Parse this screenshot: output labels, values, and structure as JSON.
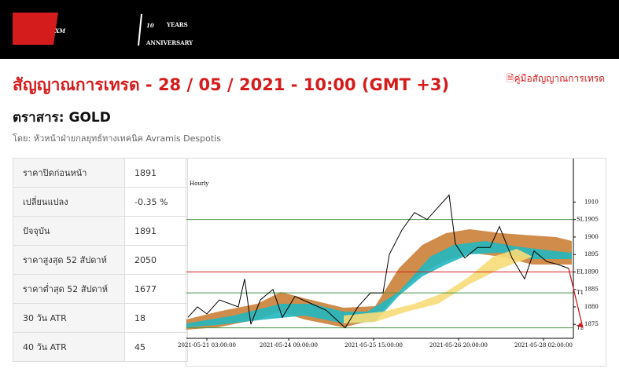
{
  "header": {
    "logo": "XM",
    "years": "10",
    "years_word": "YEARS",
    "anniversary": "ANNIVERSARY"
  },
  "title": "สัญญาณการเทรด - 28 / 05 / 2021 - 10:00 (GMT +3)",
  "guide_link": "คู่มือสัญญาณการเทรด",
  "instrument": "ตราสาร: GOLD",
  "author": "โดย: หัวหน้าฝ่ายกลยุทธ์ทางเทคนิค Avramis Despotis",
  "table": {
    "rows": [
      [
        "ราคาปิดก่อนหน้า",
        "1891"
      ],
      [
        "เปลี่ยนแปลง",
        "-0.35 %"
      ],
      [
        "ปัจจุบัน",
        "1891"
      ],
      [
        "ราคาสูงสุด 52 สัปดาห์",
        "2050"
      ],
      [
        "ราคาต่ำสุด 52 สัปดาห์",
        "1677"
      ],
      [
        "30 วัน ATR",
        "18"
      ],
      [
        "40 วัน ATR",
        "45"
      ]
    ]
  },
  "chart_data": {
    "type": "line",
    "title": "Hourly",
    "x": [
      -6,
      -3,
      0,
      4,
      10,
      12,
      14,
      17,
      21,
      24,
      28,
      33,
      38,
      44,
      48,
      52,
      56,
      58,
      62,
      66,
      70,
      73,
      77,
      79,
      82,
      86,
      90,
      93,
      97,
      101,
      104,
      108,
      112,
      115
    ],
    "series": [
      {
        "name": "GOLD",
        "color": "#000000",
        "values": [
          1877,
          1880,
          1878,
          1882,
          1880,
          1888,
          1875,
          1882,
          1885,
          1877,
          1883,
          1881,
          1879,
          1874,
          1880,
          1884,
          1884,
          1895,
          1902,
          1907,
          1905,
          1908,
          1912,
          1898,
          1894,
          1897,
          1897,
          1903,
          1894,
          1888,
          1896,
          1893,
          1892,
          1891
        ]
      }
    ],
    "levels": [
      {
        "label": "SL",
        "value": 1905,
        "color": "#4a944a"
      },
      {
        "label": "EL",
        "value": 1890,
        "color": "#d02020"
      },
      {
        "label": "T1",
        "value": 1884,
        "color": "#4a944a"
      },
      {
        "label": "T2",
        "value": 1874,
        "color": "#4a944a"
      }
    ],
    "xlim": [
      -6.5,
      116.5
    ],
    "xticks": [
      {
        "value": 0,
        "label": "2021-05-21 03:00:00"
      },
      {
        "value": 26,
        "label": "2021-05-24 09:00:00"
      },
      {
        "value": 53,
        "label": "2021-05-25 15:00:00"
      },
      {
        "value": 80,
        "label": "2021-05-26 20:00:00"
      },
      {
        "value": 107,
        "label": "2021-05-28 02:00:00"
      }
    ],
    "ylim": [
      1871,
      1922
    ],
    "yticks": [
      1875,
      1880,
      1885,
      1890,
      1895,
      1900,
      1905,
      1910
    ]
  }
}
